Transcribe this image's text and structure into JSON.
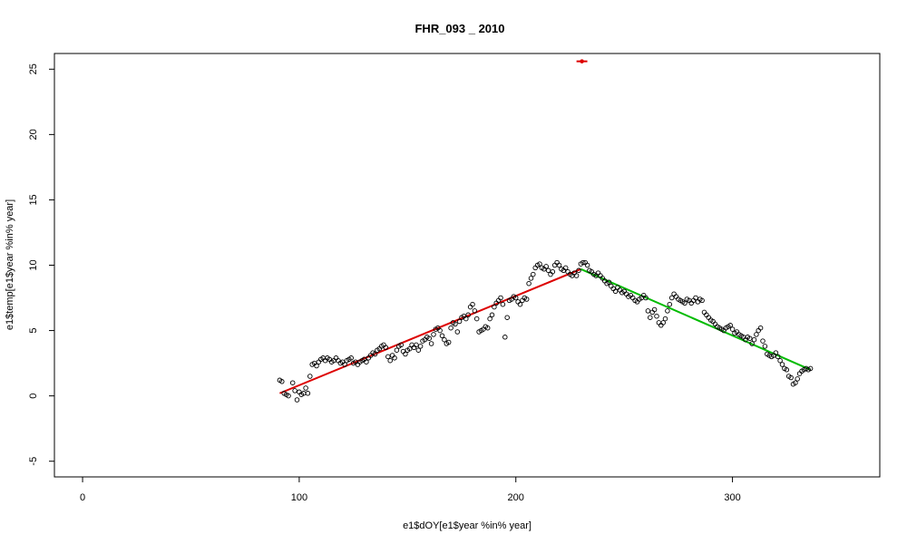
{
  "chart_data": {
    "type": "scatter",
    "title": "FHR_093 _ 2010",
    "xlabel": "e1$dOY[e1$year %in% year]",
    "ylabel": "e1$temp[e1$year %in% year]",
    "xlim": [
      -13,
      368
    ],
    "ylim": [
      -6.2,
      26.2
    ],
    "xticks": [
      0,
      100,
      200,
      300
    ],
    "yticks": [
      -5,
      0,
      5,
      10,
      15,
      20,
      25
    ],
    "grid": false,
    "legend": "none",
    "colors": {
      "points": "#000000",
      "fit1": "#dd0000",
      "fit2": "#00bb00",
      "marker": "#dd0000"
    },
    "points": [
      [
        91,
        1.2
      ],
      [
        92,
        1.1
      ],
      [
        93,
        0.2
      ],
      [
        94,
        0.1
      ],
      [
        95,
        0.0
      ],
      [
        97,
        1.0
      ],
      [
        98,
        0.4
      ],
      [
        99,
        -0.3
      ],
      [
        100,
        0.3
      ],
      [
        101,
        0.1
      ],
      [
        102,
        0.2
      ],
      [
        103,
        0.6
      ],
      [
        104,
        0.2
      ],
      [
        105,
        1.5
      ],
      [
        106,
        2.4
      ],
      [
        107,
        2.5
      ],
      [
        108,
        2.3
      ],
      [
        109,
        2.6
      ],
      [
        110,
        2.8
      ],
      [
        111,
        2.9
      ],
      [
        112,
        2.7
      ],
      [
        113,
        2.9
      ],
      [
        114,
        2.8
      ],
      [
        115,
        2.6
      ],
      [
        116,
        2.7
      ],
      [
        117,
        2.9
      ],
      [
        118,
        2.7
      ],
      [
        119,
        2.5
      ],
      [
        120,
        2.6
      ],
      [
        121,
        2.4
      ],
      [
        122,
        2.7
      ],
      [
        123,
        2.8
      ],
      [
        124,
        2.9
      ],
      [
        125,
        2.5
      ],
      [
        126,
        2.6
      ],
      [
        127,
        2.4
      ],
      [
        128,
        2.6
      ],
      [
        129,
        2.7
      ],
      [
        130,
        2.8
      ],
      [
        131,
        2.6
      ],
      [
        132,
        2.9
      ],
      [
        133,
        3.1
      ],
      [
        134,
        3.3
      ],
      [
        135,
        3.2
      ],
      [
        136,
        3.5
      ],
      [
        137,
        3.6
      ],
      [
        138,
        3.8
      ],
      [
        139,
        3.9
      ],
      [
        140,
        3.7
      ],
      [
        141,
        3.0
      ],
      [
        142,
        2.7
      ],
      [
        143,
        3.1
      ],
      [
        144,
        2.9
      ],
      [
        145,
        3.5
      ],
      [
        146,
        3.8
      ],
      [
        147,
        3.9
      ],
      [
        148,
        3.4
      ],
      [
        149,
        3.2
      ],
      [
        150,
        3.5
      ],
      [
        151,
        3.6
      ],
      [
        152,
        3.9
      ],
      [
        153,
        3.7
      ],
      [
        154,
        3.9
      ],
      [
        155,
        3.5
      ],
      [
        156,
        3.8
      ],
      [
        157,
        4.2
      ],
      [
        158,
        4.3
      ],
      [
        159,
        4.5
      ],
      [
        160,
        4.4
      ],
      [
        161,
        4.0
      ],
      [
        162,
        4.7
      ],
      [
        163,
        5.1
      ],
      [
        164,
        5.2
      ],
      [
        165,
        5.0
      ],
      [
        166,
        4.6
      ],
      [
        167,
        4.3
      ],
      [
        168,
        4.0
      ],
      [
        169,
        4.1
      ],
      [
        170,
        5.2
      ],
      [
        171,
        5.6
      ],
      [
        172,
        5.5
      ],
      [
        173,
        4.9
      ],
      [
        174,
        5.7
      ],
      [
        175,
        6.0
      ],
      [
        176,
        6.1
      ],
      [
        177,
        5.9
      ],
      [
        178,
        6.2
      ],
      [
        179,
        6.8
      ],
      [
        180,
        7.0
      ],
      [
        181,
        6.5
      ],
      [
        182,
        5.9
      ],
      [
        183,
        4.9
      ],
      [
        184,
        5.0
      ],
      [
        185,
        5.1
      ],
      [
        186,
        5.3
      ],
      [
        187,
        5.2
      ],
      [
        188,
        5.9
      ],
      [
        189,
        6.2
      ],
      [
        190,
        6.8
      ],
      [
        191,
        7.1
      ],
      [
        192,
        7.3
      ],
      [
        193,
        7.5
      ],
      [
        194,
        7.0
      ],
      [
        195,
        4.5
      ],
      [
        196,
        6.0
      ],
      [
        197,
        7.3
      ],
      [
        198,
        7.4
      ],
      [
        199,
        7.6
      ],
      [
        200,
        7.5
      ],
      [
        201,
        7.2
      ],
      [
        202,
        7.0
      ],
      [
        203,
        7.3
      ],
      [
        204,
        7.5
      ],
      [
        205,
        7.4
      ],
      [
        206,
        8.6
      ],
      [
        207,
        9.0
      ],
      [
        208,
        9.3
      ],
      [
        209,
        9.8
      ],
      [
        210,
        10.0
      ],
      [
        211,
        10.1
      ],
      [
        212,
        9.8
      ],
      [
        213,
        9.7
      ],
      [
        214,
        9.9
      ],
      [
        215,
        9.6
      ],
      [
        216,
        9.3
      ],
      [
        217,
        9.5
      ],
      [
        218,
        10.0
      ],
      [
        219,
        10.2
      ],
      [
        220,
        10.0
      ],
      [
        221,
        9.7
      ],
      [
        222,
        9.6
      ],
      [
        223,
        9.8
      ],
      [
        224,
        9.5
      ],
      [
        225,
        9.3
      ],
      [
        226,
        9.2
      ],
      [
        227,
        9.4
      ],
      [
        228,
        9.2
      ],
      [
        229,
        9.6
      ],
      [
        230,
        10.1
      ],
      [
        231,
        10.2
      ],
      [
        232,
        10.2
      ],
      [
        233,
        10.0
      ],
      [
        234,
        9.6
      ],
      [
        235,
        9.5
      ],
      [
        236,
        9.3
      ],
      [
        237,
        9.2
      ],
      [
        238,
        9.4
      ],
      [
        239,
        9.2
      ],
      [
        240,
        9.0
      ],
      [
        241,
        8.8
      ],
      [
        242,
        8.6
      ],
      [
        243,
        8.7
      ],
      [
        244,
        8.4
      ],
      [
        245,
        8.2
      ],
      [
        246,
        8.0
      ],
      [
        247,
        8.3
      ],
      [
        248,
        8.1
      ],
      [
        249,
        7.9
      ],
      [
        250,
        8.0
      ],
      [
        251,
        7.8
      ],
      [
        252,
        7.6
      ],
      [
        253,
        7.7
      ],
      [
        254,
        7.5
      ],
      [
        255,
        7.3
      ],
      [
        256,
        7.2
      ],
      [
        257,
        7.4
      ],
      [
        258,
        7.5
      ],
      [
        259,
        7.7
      ],
      [
        260,
        7.5
      ],
      [
        261,
        6.5
      ],
      [
        262,
        6.0
      ],
      [
        263,
        6.4
      ],
      [
        264,
        6.6
      ],
      [
        265,
        6.1
      ],
      [
        266,
        5.6
      ],
      [
        267,
        5.4
      ],
      [
        268,
        5.6
      ],
      [
        269,
        5.9
      ],
      [
        270,
        6.5
      ],
      [
        271,
        7.0
      ],
      [
        272,
        7.5
      ],
      [
        273,
        7.8
      ],
      [
        274,
        7.6
      ],
      [
        275,
        7.4
      ],
      [
        276,
        7.3
      ],
      [
        277,
        7.2
      ],
      [
        278,
        7.1
      ],
      [
        279,
        7.4
      ],
      [
        280,
        7.3
      ],
      [
        281,
        7.1
      ],
      [
        282,
        7.3
      ],
      [
        283,
        7.5
      ],
      [
        284,
        7.2
      ],
      [
        285,
        7.4
      ],
      [
        286,
        7.3
      ],
      [
        287,
        6.4
      ],
      [
        288,
        6.2
      ],
      [
        289,
        6.0
      ],
      [
        290,
        5.8
      ],
      [
        291,
        5.7
      ],
      [
        292,
        5.5
      ],
      [
        293,
        5.3
      ],
      [
        294,
        5.2
      ],
      [
        295,
        5.1
      ],
      [
        296,
        5.0
      ],
      [
        297,
        5.2
      ],
      [
        298,
        5.3
      ],
      [
        299,
        5.4
      ],
      [
        300,
        5.1
      ],
      [
        301,
        4.8
      ],
      [
        302,
        4.9
      ],
      [
        303,
        4.7
      ],
      [
        304,
        4.6
      ],
      [
        305,
        4.5
      ],
      [
        306,
        4.3
      ],
      [
        307,
        4.5
      ],
      [
        308,
        4.4
      ],
      [
        309,
        4.0
      ],
      [
        310,
        4.3
      ],
      [
        311,
        4.7
      ],
      [
        312,
        5.0
      ],
      [
        313,
        5.2
      ],
      [
        314,
        4.2
      ],
      [
        315,
        3.8
      ],
      [
        316,
        3.2
      ],
      [
        317,
        3.1
      ],
      [
        318,
        3.0
      ],
      [
        319,
        3.1
      ],
      [
        320,
        3.3
      ],
      [
        321,
        3.0
      ],
      [
        322,
        2.7
      ],
      [
        323,
        2.4
      ],
      [
        324,
        2.1
      ],
      [
        325,
        2.0
      ],
      [
        326,
        1.5
      ],
      [
        327,
        1.4
      ],
      [
        328,
        0.9
      ],
      [
        329,
        1.0
      ],
      [
        330,
        1.3
      ],
      [
        331,
        1.7
      ],
      [
        332,
        1.9
      ],
      [
        333,
        2.0
      ],
      [
        334,
        2.1
      ],
      [
        335,
        2.0
      ],
      [
        336,
        2.1
      ]
    ],
    "fit_segments": [
      {
        "x": [
          91,
          230
        ],
        "y": [
          0.2,
          9.7
        ],
        "color": "#dd0000"
      },
      {
        "x": [
          230,
          336
        ],
        "y": [
          9.7,
          2.0
        ],
        "color": "#00bb00"
      }
    ],
    "marker": {
      "x1": 228,
      "x2": 233,
      "y": 25.6,
      "color": "#dd0000"
    }
  }
}
